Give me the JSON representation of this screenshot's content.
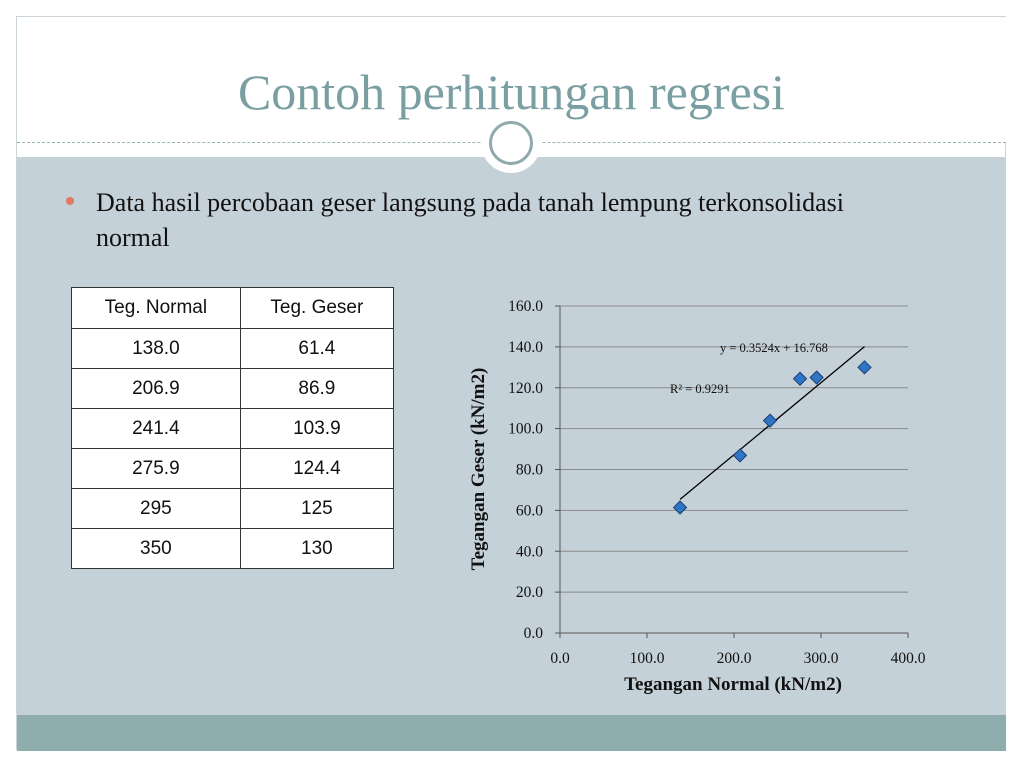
{
  "slide": {
    "title": "Contoh perhitungan regresi",
    "bullet": "Data hasil percobaan geser langsung pada tanah lempung terkonsolidasi normal"
  },
  "table": {
    "headers": [
      "Teg. Normal",
      "Teg. Geser"
    ],
    "rows": [
      [
        "138.0",
        "61.4"
      ],
      [
        "206.9",
        "86.9"
      ],
      [
        "241.4",
        "103.9"
      ],
      [
        "275.9",
        "124.4"
      ],
      [
        "295",
        "125"
      ],
      [
        "350",
        "130"
      ]
    ]
  },
  "colors": {
    "title": "#7a9fa2",
    "content_bg": "#c5d1d8",
    "footer": "#8eadac",
    "bullet": "#e07b5f",
    "marker_fill": "#2e75c5",
    "marker_stroke": "#1f3f73"
  },
  "chart_data": {
    "type": "scatter",
    "xlabel": "Tegangan Normal (kN/m2)",
    "ylabel": "Tegangan Geser (kN/m2)",
    "xlim": [
      0,
      400
    ],
    "ylim": [
      0,
      160
    ],
    "xticks": [
      "0.0",
      "100.0",
      "200.0",
      "300.0",
      "400.0"
    ],
    "yticks": [
      "0.0",
      "20.0",
      "40.0",
      "60.0",
      "80.0",
      "100.0",
      "120.0",
      "140.0",
      "160.0"
    ],
    "grid": "horizontal",
    "legend": "none",
    "series": [
      {
        "x": [
          138.0,
          206.9,
          241.4,
          275.9,
          295,
          350
        ],
        "y": [
          61.4,
          86.9,
          103.9,
          124.4,
          125,
          130
        ],
        "marker": "diamond"
      }
    ],
    "trendline": {
      "type": "linear",
      "slope": 0.3524,
      "intercept": 16.768,
      "x_range": [
        138.0,
        350
      ],
      "equation_label": "y = 0.3524x + 16.768",
      "r2_label": "R² = 0.9291"
    }
  }
}
